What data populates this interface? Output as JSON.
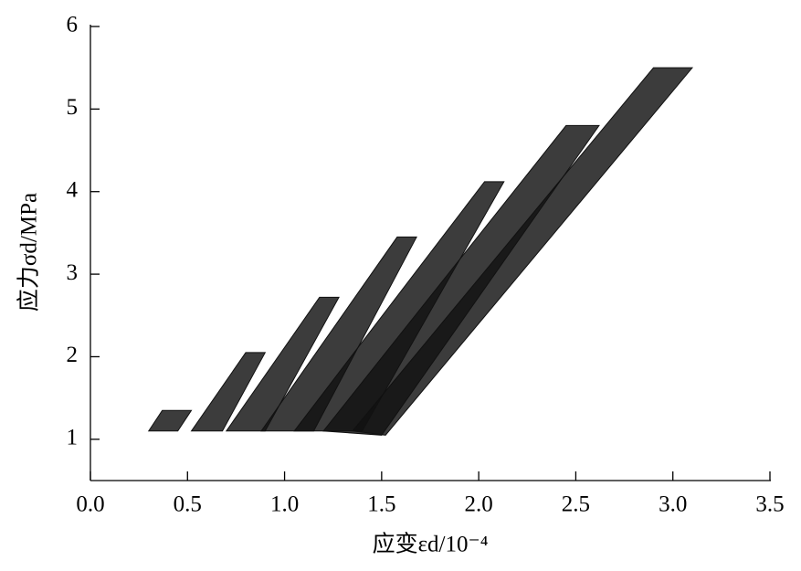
{
  "chart_data": {
    "type": "line",
    "fill": true,
    "x_label": "应变εd/10⁻⁴",
    "y_label": "应力σd/MPa",
    "xlim": [
      0,
      3.5
    ],
    "ylim": [
      0.5,
      6
    ],
    "xticks": [
      {
        "value": 0,
        "label": "0.0"
      },
      0.5,
      {
        "value": 1,
        "label": "1.0"
      },
      1.5,
      {
        "value": 2,
        "label": "2.0"
      },
      2.5,
      {
        "value": 3,
        "label": "3.0"
      },
      3.5
    ],
    "yticks": [
      1,
      2,
      3,
      4,
      5,
      6
    ],
    "series": [
      {
        "color": "#111111",
        "x": [
          0.3,
          0.37,
          0.52,
          0.45
        ],
        "values": [
          1.1,
          1.35,
          1.35,
          1.1
        ]
      },
      {
        "color": "#111111",
        "x": [
          0.52,
          0.8,
          0.9,
          0.68
        ],
        "values": [
          1.1,
          2.05,
          2.05,
          1.1
        ]
      },
      {
        "color": "#111111",
        "x": [
          0.7,
          1.18,
          1.28,
          0.9
        ],
        "values": [
          1.1,
          2.72,
          2.72,
          1.1
        ]
      },
      {
        "color": "#111111",
        "x": [
          0.88,
          1.58,
          1.68,
          1.15
        ],
        "values": [
          1.1,
          3.45,
          3.45,
          1.1
        ]
      },
      {
        "color": "#111111",
        "x": [
          1.05,
          2.03,
          2.13,
          1.4
        ],
        "values": [
          1.1,
          4.12,
          4.12,
          1.1
        ]
      },
      {
        "color": "#111111",
        "x": [
          1.2,
          2.45,
          2.62,
          1.5
        ],
        "values": [
          1.1,
          4.8,
          4.8,
          1.05
        ]
      },
      {
        "color": "#111111",
        "x": [
          1.35,
          2.9,
          3.1,
          1.52
        ],
        "values": [
          1.1,
          5.5,
          5.5,
          1.05
        ]
      }
    ]
  }
}
